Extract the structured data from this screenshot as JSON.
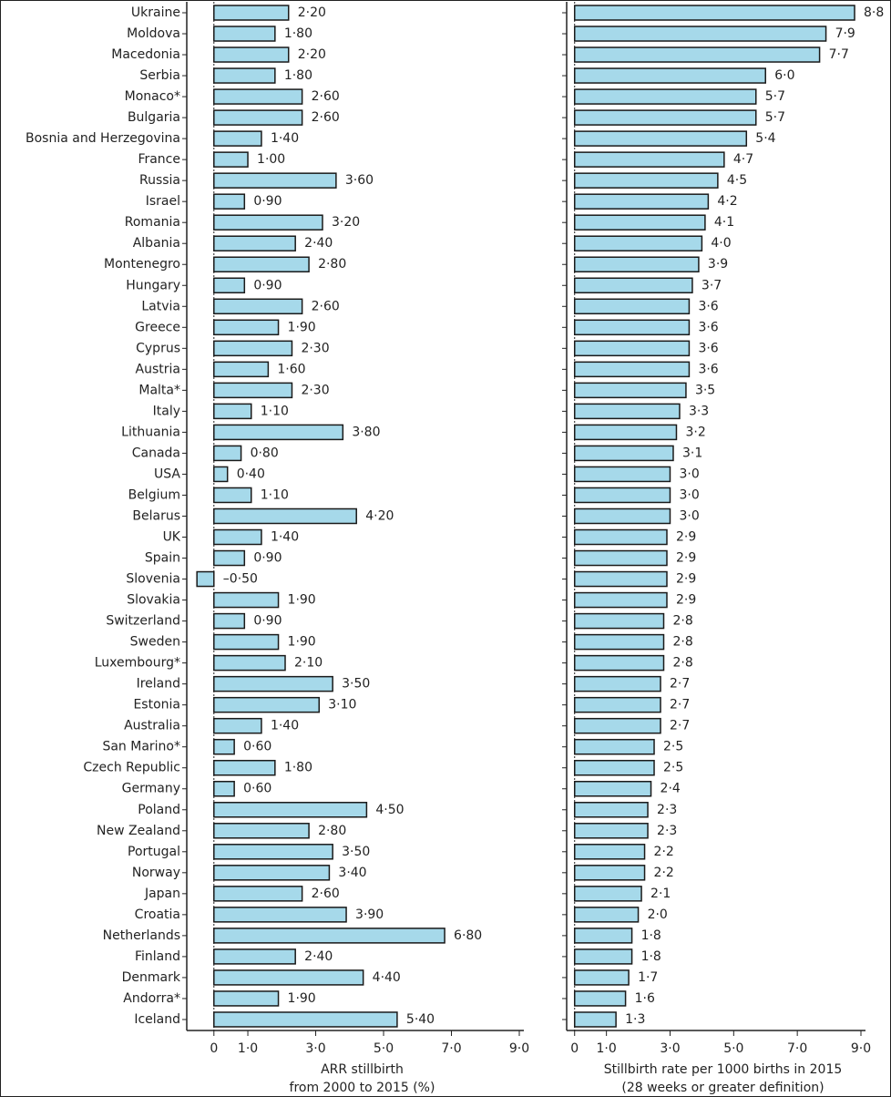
{
  "chart_data": [
    {
      "type": "bar",
      "orientation": "horizontal",
      "categories": [
        "Ukraine",
        "Moldova",
        "Macedonia",
        "Serbia",
        "Monaco*",
        "Bulgaria",
        "Bosnia and Herzegovina",
        "France",
        "Russia",
        "Israel",
        "Romania",
        "Albania",
        "Montenegro",
        "Hungary",
        "Latvia",
        "Greece",
        "Cyprus",
        "Austria",
        "Malta*",
        "Italy",
        "Lithuania",
        "Canada",
        "USA",
        "Belgium",
        "Belarus",
        "UK",
        "Spain",
        "Slovenia",
        "Slovakia",
        "Switzerland",
        "Sweden",
        "Luxembourg*",
        "Ireland",
        "Estonia",
        "Australia",
        "San Marino*",
        "Czech Republic",
        "Germany",
        "Poland",
        "New Zealand",
        "Portugal",
        "Norway",
        "Japan",
        "Croatia",
        "Netherlands",
        "Finland",
        "Denmark",
        "Andorra*",
        "Iceland"
      ],
      "values": [
        2.2,
        1.8,
        2.2,
        1.8,
        2.6,
        2.6,
        1.4,
        1.0,
        3.6,
        0.9,
        3.2,
        2.4,
        2.8,
        0.9,
        2.6,
        1.9,
        2.3,
        1.6,
        2.3,
        1.1,
        3.8,
        0.8,
        0.4,
        1.1,
        4.2,
        1.4,
        0.9,
        -0.5,
        1.9,
        0.9,
        1.9,
        2.1,
        3.5,
        3.1,
        1.4,
        0.6,
        1.8,
        0.6,
        4.5,
        2.8,
        3.5,
        3.4,
        2.6,
        3.9,
        6.8,
        2.4,
        4.4,
        1.9,
        5.4
      ],
      "value_labels": [
        "2·20",
        "1·80",
        "2·20",
        "1·80",
        "2·60",
        "2·60",
        "1·40",
        "1·00",
        "3·60",
        "0·90",
        "3·20",
        "2·40",
        "2·80",
        "0·90",
        "2·60",
        "1·90",
        "2·30",
        "1·60",
        "2·30",
        "1·10",
        "3·80",
        "0·80",
        "0·40",
        "1·10",
        "4·20",
        "1·40",
        "0·90",
        "–0·50",
        "1·90",
        "0·90",
        "1·90",
        "2·10",
        "3·50",
        "3·10",
        "1·40",
        "0·60",
        "1·80",
        "0·60",
        "4·50",
        "2·80",
        "3·50",
        "3·40",
        "2·60",
        "3·90",
        "6·80",
        "2·40",
        "4·40",
        "1·90",
        "5·40"
      ],
      "color": "#a6d9ea",
      "xlim": [
        -0.8,
        9
      ],
      "xticks": [
        0,
        {
          "value": 1,
          "label": "1·0"
        },
        {
          "value": 3,
          "label": "3·0"
        },
        {
          "value": 5,
          "label": "5·0"
        },
        {
          "value": 7,
          "label": "7·0"
        },
        {
          "value": 9,
          "label": "9·0"
        }
      ],
      "xlabel": [
        "ARR stillbirth",
        "from 2000 to 2015 (%)"
      ]
    },
    {
      "type": "bar",
      "orientation": "horizontal",
      "values": [
        8.8,
        7.9,
        7.7,
        6.0,
        5.7,
        5.7,
        5.4,
        4.7,
        4.5,
        4.2,
        4.1,
        4.0,
        3.9,
        3.7,
        3.6,
        3.6,
        3.6,
        3.6,
        3.5,
        3.3,
        3.2,
        3.1,
        3.0,
        3.0,
        3.0,
        2.9,
        2.9,
        2.9,
        2.9,
        2.8,
        2.8,
        2.8,
        2.7,
        2.7,
        2.7,
        2.5,
        2.5,
        2.4,
        2.3,
        2.3,
        2.2,
        2.2,
        2.1,
        2.0,
        1.8,
        1.8,
        1.7,
        1.6,
        1.3
      ],
      "value_labels": [
        "8·8",
        "7·9",
        "7·7",
        "6·0",
        "5·7",
        "5·7",
        "5·4",
        "4·7",
        "4·5",
        "4·2",
        "4·1",
        "4·0",
        "3·9",
        "3·7",
        "3·6",
        "3·6",
        "3·6",
        "3·6",
        "3·5",
        "3·3",
        "3·2",
        "3·1",
        "3·0",
        "3·0",
        "3·0",
        "2·9",
        "2·9",
        "2·9",
        "2·9",
        "2·8",
        "2·8",
        "2·8",
        "2·7",
        "2·7",
        "2·7",
        "2·5",
        "2·5",
        "2·4",
        "2·3",
        "2·3",
        "2·2",
        "2·2",
        "2·1",
        "2·0",
        "1·8",
        "1·8",
        "1·7",
        "1·6",
        "1·3"
      ],
      "color": "#a6d9ea",
      "xlim": [
        -0.25,
        9
      ],
      "xticks": [
        0,
        {
          "value": 1,
          "label": "1·0"
        },
        {
          "value": 3,
          "label": "3·0"
        },
        {
          "value": 5,
          "label": "5·0"
        },
        {
          "value": 7,
          "label": "7·0"
        },
        {
          "value": 9,
          "label": "9·0"
        }
      ],
      "xlabel": [
        "Stillbirth rate per 1000 births in 2015",
        "(28 weeks or greater definition)"
      ]
    }
  ]
}
